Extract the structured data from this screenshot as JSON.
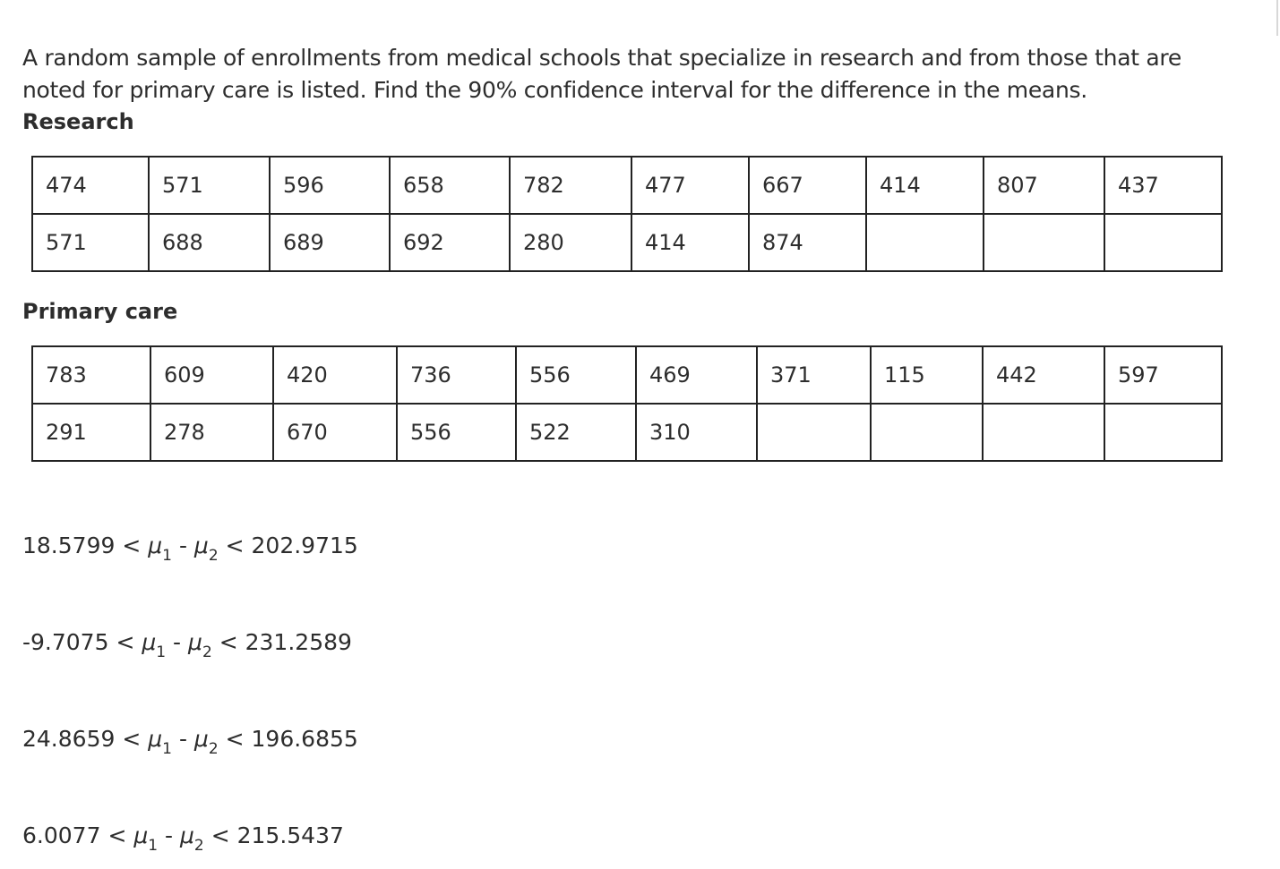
{
  "question": "A random sample of enrollments from medical schools that specialize in research and from those that are noted for primary care is listed. Find the 90% confidence interval for the difference in the means.",
  "research": {
    "label": "Research",
    "rows": [
      [
        "474",
        "571",
        "596",
        "658",
        "782",
        "477",
        "667",
        "414",
        "807",
        "437"
      ],
      [
        "571",
        "688",
        "689",
        "692",
        "280",
        "414",
        "874",
        "",
        "",
        ""
      ]
    ]
  },
  "primary": {
    "label": "Primary care",
    "rows": [
      [
        "783",
        "609",
        "420",
        "736",
        "556",
        "469",
        "371",
        "115",
        "442",
        "597"
      ],
      [
        "291",
        "278",
        "670",
        "556",
        "522",
        "310",
        "",
        "",
        "",
        ""
      ]
    ]
  },
  "options": [
    {
      "low": "18.5799",
      "high": "202.9715"
    },
    {
      "low": "-9.7075",
      "high": "231.2589"
    },
    {
      "low": "24.8659",
      "high": "196.6855"
    },
    {
      "low": "6.0077",
      "high": "215.5437"
    }
  ],
  "symbols": {
    "lt": "<",
    "mu": "μ",
    "one": "1",
    "two": "2",
    "minus": "-"
  }
}
